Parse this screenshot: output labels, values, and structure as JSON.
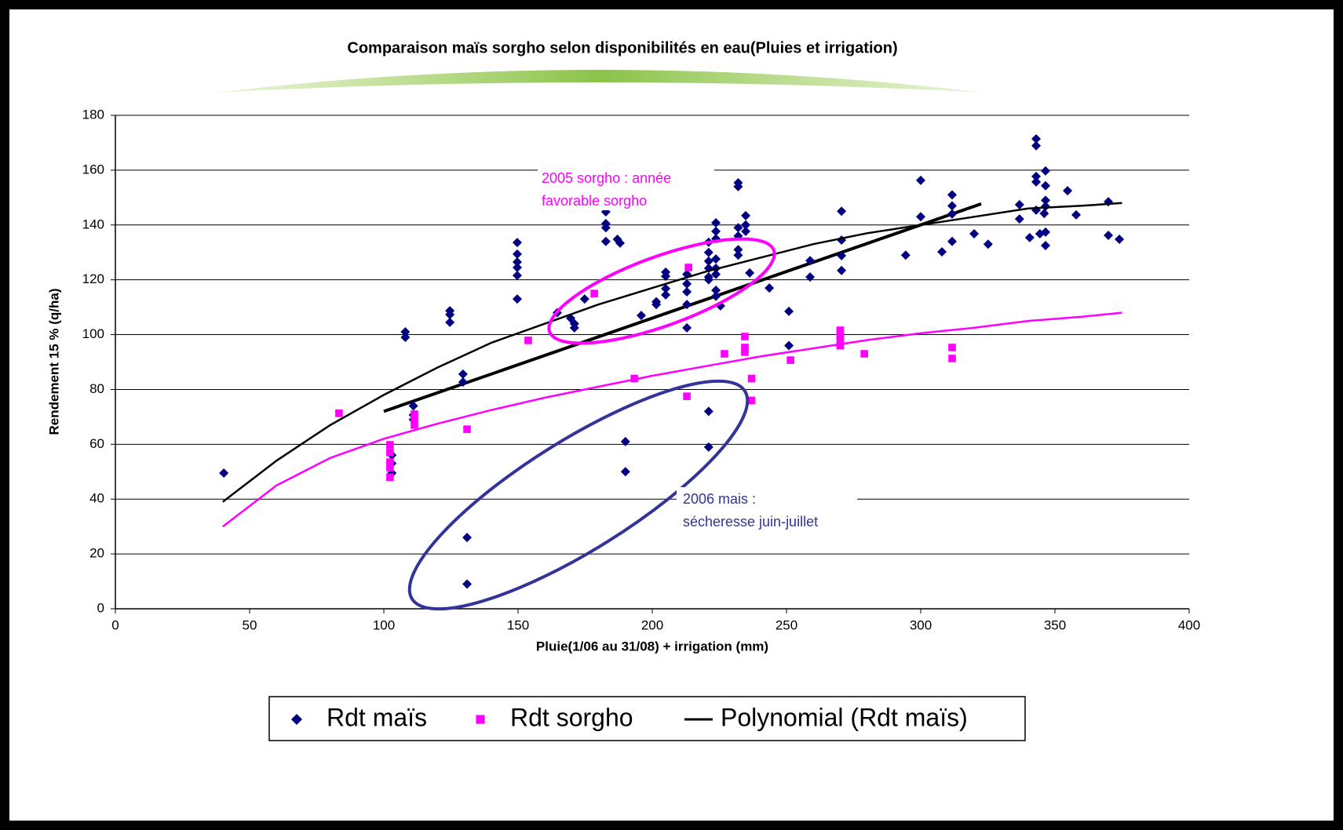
{
  "chart_data": {
    "type": "scatter",
    "title": "Comparaison maïs sorgho selon disponibilités en eau(Pluies et irrigation)",
    "x_label": "Pluie(1/06 au 31/08) + irrigation (mm)",
    "y_label": "Rendement 15 % (q/ha)",
    "xlim": [
      0,
      400
    ],
    "xticks": [
      0,
      50,
      100,
      150,
      200,
      250,
      300,
      350,
      400
    ],
    "ylim": [
      0,
      180
    ],
    "yticks": [
      0,
      20,
      40,
      60,
      80,
      100,
      120,
      140,
      160,
      180
    ],
    "grid": true,
    "legend": "bottom",
    "series": [
      {
        "name": "Rdt maïs",
        "color": "#000080",
        "marker": "diamond",
        "x": [
          40.4,
          108,
          108,
          111,
          111,
          111,
          103,
          103,
          103,
          124.6,
          124.6,
          124.6,
          129.5,
          129.5,
          149.7,
          149.7,
          149.7,
          149.7,
          149.7,
          149.7,
          164.6,
          169.6,
          171,
          171,
          174.8,
          182.7,
          182.7,
          182.7,
          182.7,
          187,
          188,
          195.9,
          201.5,
          201.5,
          205,
          205,
          205,
          205,
          212.9,
          212.9,
          212.9,
          212.9,
          212.9,
          221,
          221,
          221,
          221,
          221,
          221,
          223.7,
          223.7,
          223.7,
          223.7,
          223.7,
          223.7,
          223.7,
          223.7,
          225.4,
          232,
          232,
          232,
          232,
          232,
          232,
          234.8,
          234.8,
          234.8,
          236.3,
          243.6,
          250.9,
          250.9,
          258.8,
          258.8,
          270.5,
          270.5,
          270.5,
          270.5,
          294.4,
          300,
          300,
          307.9,
          311.7,
          311.7,
          311.7,
          311.7,
          319.9,
          325.1,
          336.8,
          336.8,
          340.6,
          343,
          343,
          343,
          343,
          343,
          344.4,
          346,
          346.5,
          346.5,
          346.5,
          346.5,
          346.5,
          346.5,
          354.7,
          357.9,
          369.9,
          369.9,
          374,
          131,
          131,
          190,
          190,
          221,
          221
        ],
        "values": [
          49.5,
          101,
          99,
          74,
          70.7,
          69,
          56,
          53,
          49.5,
          108.7,
          107.3,
          104.5,
          85.6,
          82.7,
          133.6,
          129.4,
          126.5,
          124.5,
          121.6,
          113,
          108,
          106,
          104,
          102.5,
          113,
          144.8,
          140.5,
          139,
          134,
          134.8,
          133.4,
          107,
          112,
          111,
          122.8,
          121.3,
          116.8,
          114.5,
          122,
          118.5,
          115.6,
          111,
          102.5,
          133.7,
          130,
          126.8,
          124.2,
          121,
          120,
          140.8,
          137.7,
          135,
          127.6,
          124.2,
          122,
          116.2,
          114,
          110.5,
          155.4,
          154,
          139,
          136,
          131,
          129,
          143.4,
          140,
          137.7,
          122.5,
          117,
          108.5,
          96,
          127,
          121,
          145,
          134.5,
          128.8,
          123.4,
          129,
          156.3,
          143,
          130.2,
          151,
          147,
          144,
          134,
          136.8,
          133,
          147.4,
          142.2,
          135.4,
          171.4,
          168.9,
          157.7,
          155.7,
          145.4,
          136.8,
          144.2,
          159.7,
          154.3,
          149,
          146.8,
          137.4,
          132.5,
          152.5,
          143.7,
          148.5,
          136.2,
          134.8,
          26,
          9,
          61,
          50,
          72,
          59
        ]
      },
      {
        "name": "Rdt sorgho",
        "color": "#ff00ff",
        "marker": "square",
        "x": [
          83.3,
          102.3,
          102.3,
          102.3,
          102.3,
          102.3,
          111.4,
          111.4,
          111.4,
          131,
          153.8,
          178.4,
          193.3,
          212.9,
          213.5,
          226.9,
          234.5,
          234.5,
          234.5,
          237,
          237,
          251.5,
          270,
          270,
          270,
          270,
          279,
          311.7,
          311.7
        ],
        "values": [
          71.3,
          59.8,
          57,
          53.5,
          51.5,
          48,
          71,
          69,
          67,
          65.5,
          97.9,
          115,
          84,
          77.5,
          124.5,
          93,
          99.3,
          95.3,
          93.6,
          84,
          76,
          90.7,
          101.6,
          99.6,
          98,
          96,
          93,
          95.3,
          91.3
        ]
      },
      {
        "name": "Polynomial (Rdt maïs)",
        "color": "#000000",
        "marker": "line",
        "x": [
          40,
          60,
          80,
          100,
          120,
          140,
          160,
          180,
          200,
          220,
          240,
          260,
          280,
          300,
          320,
          340,
          360,
          375
        ],
        "values": [
          39,
          54,
          67,
          78,
          88,
          97,
          104,
          111,
          117,
          123,
          128,
          133,
          137,
          140,
          143,
          146,
          147,
          148
        ]
      }
    ],
    "trendlines": [
      {
        "color": "#000000",
        "width": 4,
        "x": [
          100,
          322.5
        ],
        "values": [
          72,
          147.7
        ]
      },
      {
        "color": "#ff00ff",
        "width": 2.5,
        "x": [
          40,
          60,
          80,
          100,
          120,
          140,
          160,
          180,
          200,
          220,
          240,
          260,
          280,
          300,
          320,
          340,
          360,
          375
        ],
        "values": [
          30,
          45,
          55,
          62,
          67.5,
          72.5,
          77,
          81,
          85,
          88.5,
          92,
          95,
          98,
          100.5,
          102.5,
          105,
          106.5,
          108
        ]
      }
    ],
    "annotations": [
      {
        "lines": [
          "2005 sorgho : année",
          "favorable sorgho"
        ],
        "color": "#ff00ff"
      },
      {
        "lines": [
          "2006 mais :",
          "sécheresse juin-juillet"
        ],
        "color": "#333399"
      }
    ]
  }
}
